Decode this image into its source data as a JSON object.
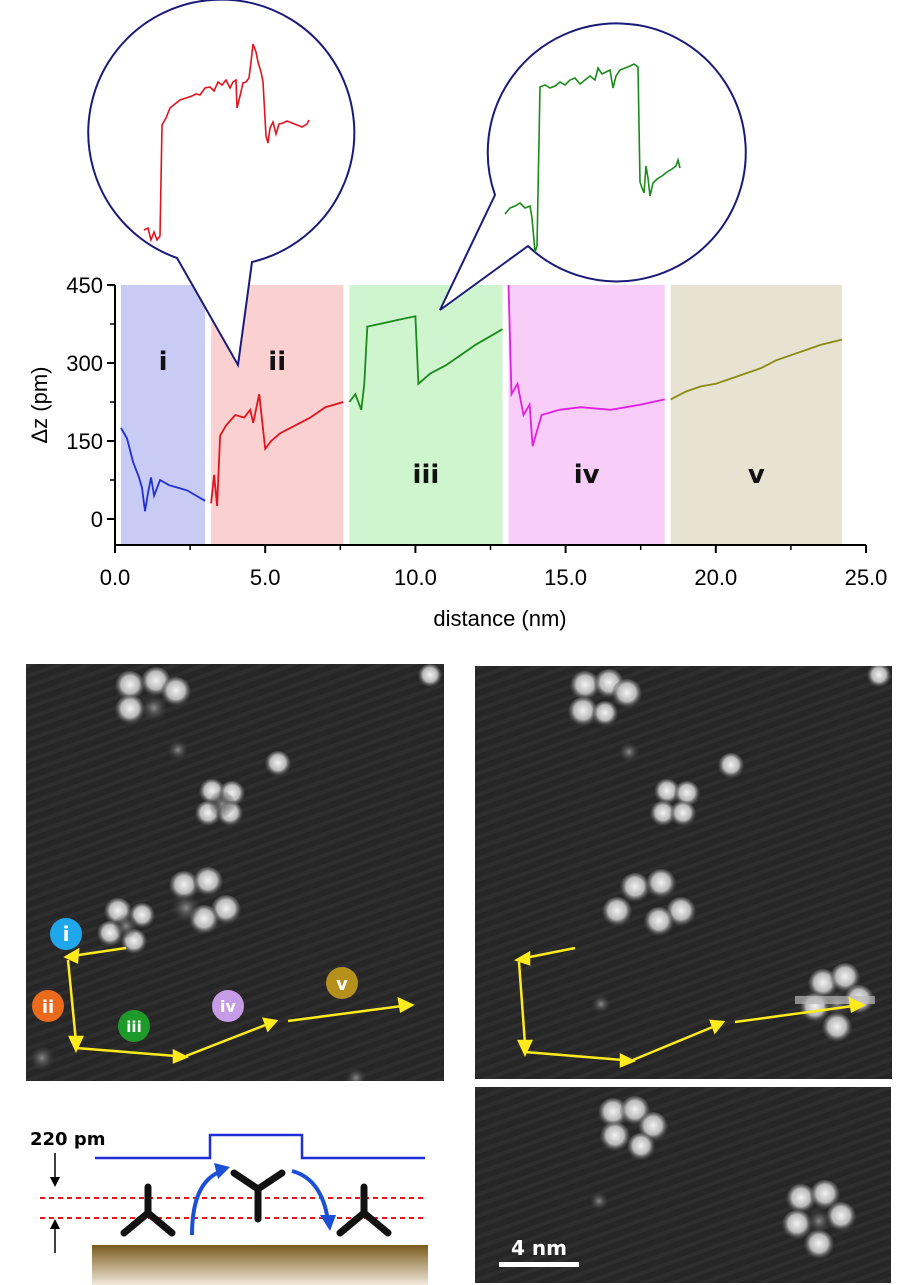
{
  "chart_data": {
    "type": "line",
    "xlabel": "distance (nm)",
    "ylabel": "Δz (pm)",
    "xlim": [
      0,
      25
    ],
    "ylim": [
      -50,
      450
    ],
    "x_ticks": [
      "0.0",
      "5.0",
      "10.0",
      "15.0",
      "20.0",
      "25.0"
    ],
    "y_ticks": [
      "0",
      "150",
      "300",
      "450"
    ],
    "regions": [
      {
        "label": "i",
        "x_range": [
          0.2,
          3.0
        ],
        "color": "#c8ccf5"
      },
      {
        "label": "ii",
        "x_range": [
          3.2,
          7.6
        ],
        "color": "#fbd0d0"
      },
      {
        "label": "iii",
        "x_range": [
          7.8,
          12.9
        ],
        "color": "#cff5cf"
      },
      {
        "label": "iv",
        "x_range": [
          13.1,
          18.3
        ],
        "color": "#f8cef8"
      },
      {
        "label": "v",
        "x_range": [
          18.5,
          24.2
        ],
        "color": "#e8e2d2"
      }
    ],
    "series": [
      {
        "color": "#1f2fd6",
        "points": [
          [
            0.2,
            175
          ],
          [
            0.4,
            155
          ],
          [
            0.6,
            110
          ],
          [
            0.8,
            80
          ],
          [
            0.9,
            60
          ],
          [
            1.0,
            15
          ],
          [
            1.1,
            50
          ],
          [
            1.2,
            80
          ],
          [
            1.3,
            45
          ],
          [
            1.5,
            75
          ],
          [
            1.8,
            65
          ],
          [
            2.1,
            60
          ],
          [
            2.4,
            55
          ],
          [
            2.7,
            45
          ],
          [
            3.0,
            35
          ]
        ]
      },
      {
        "color": "#e0141e",
        "points": [
          [
            3.2,
            30
          ],
          [
            3.3,
            85
          ],
          [
            3.4,
            25
          ],
          [
            3.5,
            160
          ],
          [
            3.7,
            180
          ],
          [
            4.0,
            200
          ],
          [
            4.3,
            195
          ],
          [
            4.5,
            210
          ],
          [
            4.6,
            185
          ],
          [
            4.8,
            240
          ],
          [
            5.0,
            135
          ],
          [
            5.2,
            150
          ],
          [
            5.5,
            165
          ],
          [
            6.0,
            180
          ],
          [
            6.5,
            195
          ],
          [
            7.0,
            215
          ],
          [
            7.6,
            225
          ]
        ]
      },
      {
        "color": "#1a8a1a",
        "points": [
          [
            7.8,
            225
          ],
          [
            8.0,
            240
          ],
          [
            8.2,
            210
          ],
          [
            8.3,
            260
          ],
          [
            8.4,
            370
          ],
          [
            8.8,
            375
          ],
          [
            9.2,
            380
          ],
          [
            9.6,
            385
          ],
          [
            10.0,
            390
          ],
          [
            10.1,
            260
          ],
          [
            10.5,
            280
          ],
          [
            11.0,
            295
          ],
          [
            11.5,
            315
          ],
          [
            12.0,
            335
          ],
          [
            12.9,
            365
          ]
        ]
      },
      {
        "color": "#e020e0",
        "points": [
          [
            13.1,
            450
          ],
          [
            13.2,
            240
          ],
          [
            13.4,
            260
          ],
          [
            13.6,
            200
          ],
          [
            13.8,
            220
          ],
          [
            13.9,
            140
          ],
          [
            14.2,
            200
          ],
          [
            14.8,
            210
          ],
          [
            15.5,
            215
          ],
          [
            16.5,
            210
          ],
          [
            17.5,
            220
          ],
          [
            18.3,
            230
          ]
        ]
      },
      {
        "color": "#8a8a10",
        "points": [
          [
            18.5,
            230
          ],
          [
            19.0,
            245
          ],
          [
            19.5,
            255
          ],
          [
            20.0,
            260
          ],
          [
            20.5,
            270
          ],
          [
            21.0,
            280
          ],
          [
            21.5,
            290
          ],
          [
            22.0,
            305
          ],
          [
            22.5,
            315
          ],
          [
            23.0,
            325
          ],
          [
            23.5,
            335
          ],
          [
            24.2,
            345
          ]
        ]
      }
    ],
    "insets": [
      {
        "series_color": "#e0141e"
      },
      {
        "series_color": "#1a8a1a"
      }
    ]
  },
  "stm_images": {
    "left_labels": [
      {
        "label": "i",
        "color": "#1fa7ec"
      },
      {
        "label": "ii",
        "color": "#ec6a1c"
      },
      {
        "label": "iii",
        "color": "#1d9a2a"
      },
      {
        "label": "iv",
        "color": "#c79ce6"
      },
      {
        "label": "v",
        "color": "#b5901a"
      }
    ],
    "scale_bar": "4 nm"
  },
  "schematic": {
    "height_label": "220 pm"
  }
}
